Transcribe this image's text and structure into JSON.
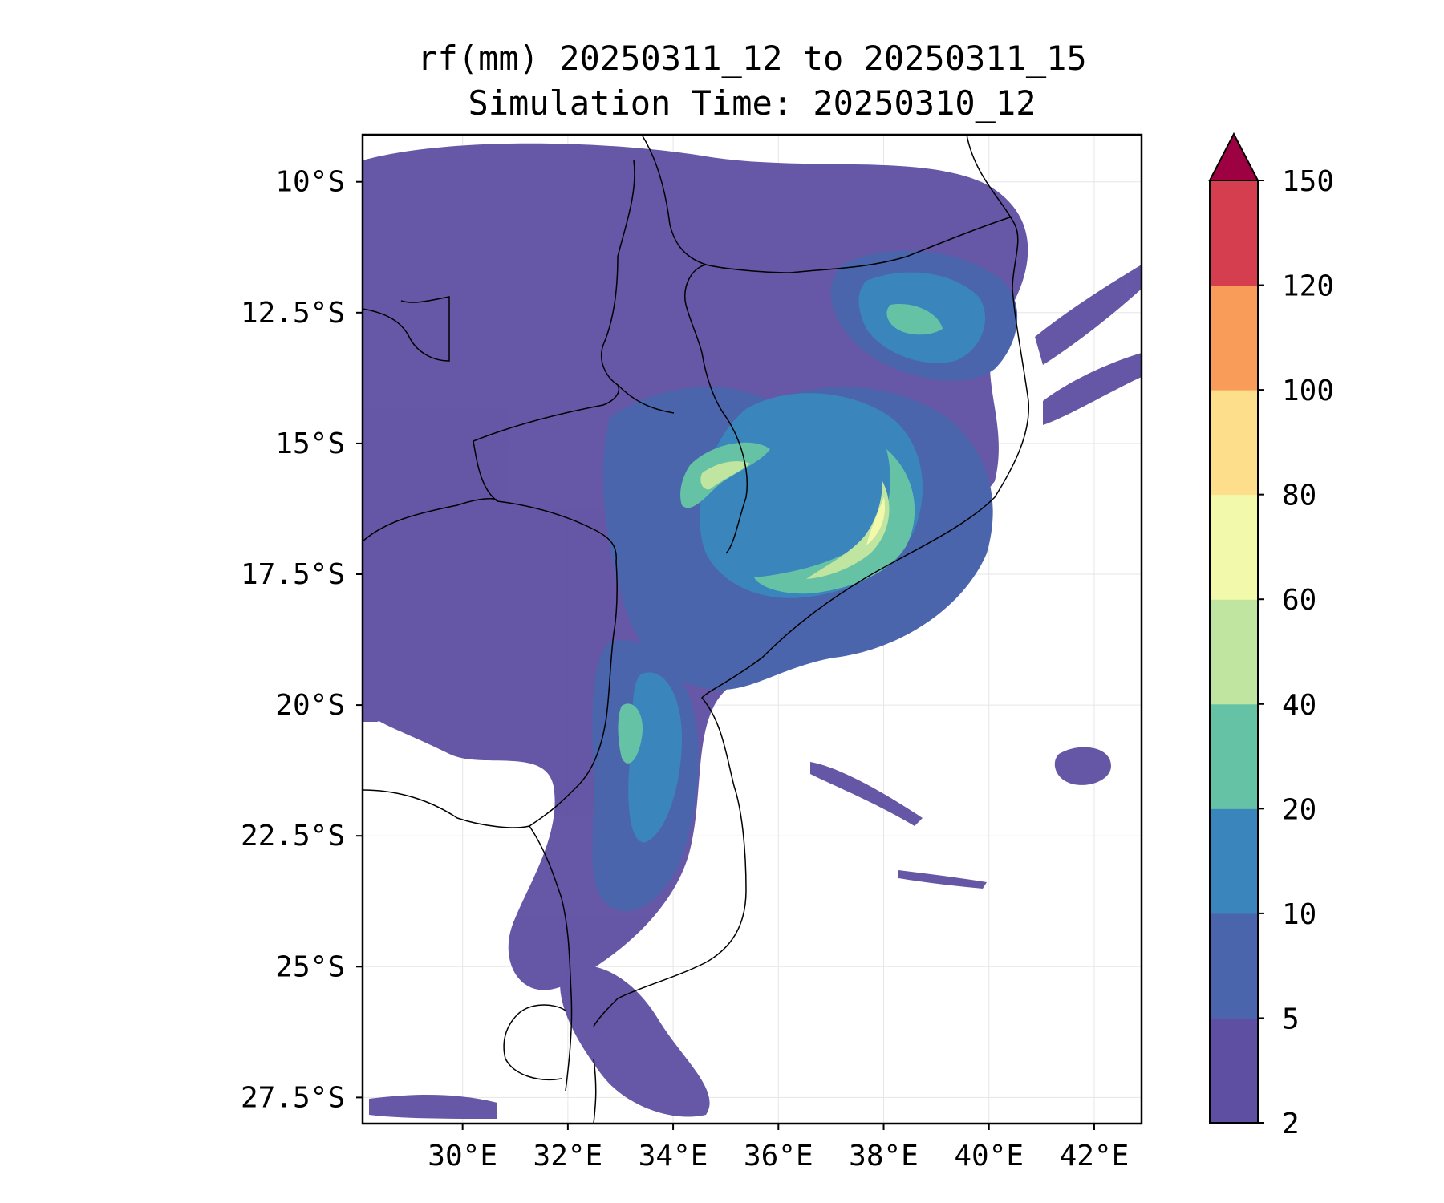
{
  "title": {
    "line1": "rf(mm) 20250311_12 to 20250311_15",
    "line2": "Simulation Time: 20250310_12"
  },
  "map": {
    "lat_labels": [
      "10°S",
      "12.5°S",
      "15°S",
      "17.5°S",
      "20°S",
      "22.5°S",
      "25°S",
      "27.5°S"
    ],
    "lon_labels": [
      "30°E",
      "32°E",
      "34°E",
      "36°E",
      "38°E",
      "40°E",
      "42°E"
    ],
    "lat_values": [
      -10,
      -12.5,
      -15,
      -17.5,
      -20,
      -22.5,
      -25,
      -27.5
    ],
    "lon_values": [
      30,
      32,
      34,
      36,
      38,
      40,
      42
    ],
    "extent": {
      "lon_min": 28.1,
      "lon_max": 42.9,
      "lat_min": -28.0,
      "lat_max": -9.1
    },
    "grid": true
  },
  "colorbar": {
    "levels": [
      "2",
      "5",
      "10",
      "20",
      "40",
      "60",
      "80",
      "100",
      "120",
      "150"
    ],
    "colors": [
      "#5e4fa2",
      "#4b65ad",
      "#3a86bc",
      "#66c2a5",
      "#bfe5a0",
      "#f2f9ab",
      "#fddf8b",
      "#f99b59",
      "#d53e4f"
    ],
    "extend_color": "#9e0142",
    "extend": "max"
  }
}
